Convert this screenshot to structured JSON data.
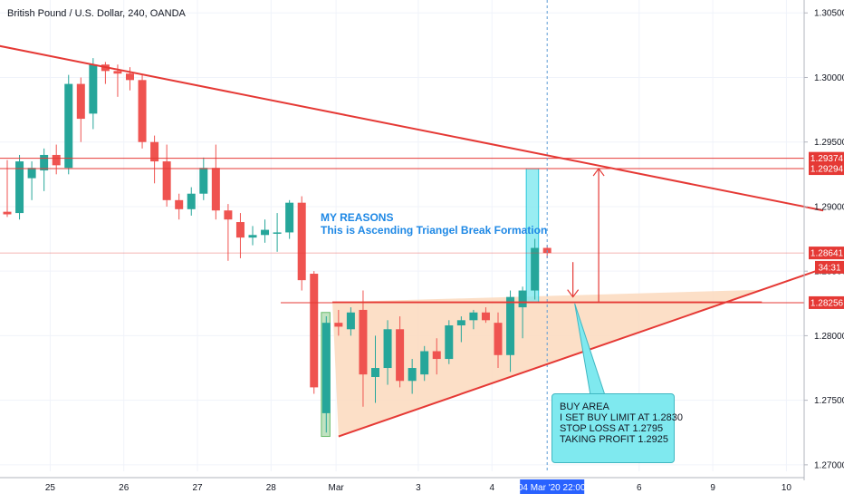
{
  "header": {
    "title": "British Pound / U.S. Dollar, 240, OANDA"
  },
  "annotations": {
    "reasons_title": "MY REASONS",
    "reasons_text": "This is Ascending Triangel Break Formation",
    "callout_lines": [
      "BUY AREA",
      "I SET BUY LIMIT AT 1.2830",
      "STOP LOSS AT 1.2795",
      "TAKING PROFIT 1.2925"
    ]
  },
  "colors": {
    "bull": "#26a69a",
    "bear": "#ef5350",
    "trend": "#e53935",
    "triangle_fill": "#fbd9bd",
    "highlight": "#7fe9ef",
    "grid": "#f0f3fa"
  },
  "chart_data": {
    "type": "candlestick",
    "title": "British Pound / U.S. Dollar, 240, OANDA",
    "ylim": [
      1.2695,
      1.306
    ],
    "y_ticks": [
      1.27,
      1.275,
      1.28,
      1.285,
      1.29,
      1.295,
      1.3,
      1.305
    ],
    "y_tick_labels": [
      "1.27000",
      "1.27500",
      "1.28000",
      "1.28500",
      "1.29000",
      "1.29500",
      "1.30000",
      "1.30500"
    ],
    "x_labels": [
      {
        "i": 3.5,
        "label": "25"
      },
      {
        "i": 9.5,
        "label": "26"
      },
      {
        "i": 15.5,
        "label": "27"
      },
      {
        "i": 21.5,
        "label": "28"
      },
      {
        "i": 26.8,
        "label": "Mar"
      },
      {
        "i": 33.5,
        "label": "3"
      },
      {
        "i": 39.5,
        "label": "4"
      },
      {
        "i": 51.5,
        "label": "6"
      },
      {
        "i": 57.5,
        "label": "9"
      },
      {
        "i": 63.5,
        "label": "10"
      }
    ],
    "cursor_label": "04 Mar '20  22:00",
    "cursor_i": 44,
    "price_labels": [
      {
        "value": 1.29374,
        "label": "1.29374"
      },
      {
        "value": 1.29294,
        "label": "1.29294"
      },
      {
        "value": 1.28641,
        "label": "1.28641"
      },
      {
        "value": 1.28256,
        "label": "1.28256"
      }
    ],
    "countdown": "34:31",
    "countdown_value": 1.2853,
    "candles": [
      {
        "i": 0,
        "o": 1.2896,
        "h": 1.2936,
        "l": 1.2892,
        "c": 1.2894
      },
      {
        "i": 1,
        "o": 1.2895,
        "h": 1.294,
        "l": 1.289,
        "c": 1.2935
      },
      {
        "i": 2,
        "o": 1.2922,
        "h": 1.2935,
        "l": 1.2905,
        "c": 1.293
      },
      {
        "i": 3,
        "o": 1.2928,
        "h": 1.2945,
        "l": 1.2912,
        "c": 1.294
      },
      {
        "i": 4,
        "o": 1.294,
        "h": 1.2948,
        "l": 1.2925,
        "c": 1.2932
      },
      {
        "i": 5,
        "o": 1.293,
        "h": 1.3002,
        "l": 1.2925,
        "c": 1.2995
      },
      {
        "i": 6,
        "o": 1.2995,
        "h": 1.3,
        "l": 1.295,
        "c": 1.2968
      },
      {
        "i": 7,
        "o": 1.2972,
        "h": 1.3015,
        "l": 1.296,
        "c": 1.301
      },
      {
        "i": 8,
        "o": 1.301,
        "h": 1.3012,
        "l": 1.2995,
        "c": 1.3005
      },
      {
        "i": 9,
        "o": 1.3005,
        "h": 1.301,
        "l": 1.2985,
        "c": 1.3003
      },
      {
        "i": 10,
        "o": 1.3003,
        "h": 1.3008,
        "l": 1.299,
        "c": 1.2998
      },
      {
        "i": 11,
        "o": 1.2998,
        "h": 1.3002,
        "l": 1.2945,
        "c": 1.295
      },
      {
        "i": 12,
        "o": 1.295,
        "h": 1.2955,
        "l": 1.2918,
        "c": 1.2935
      },
      {
        "i": 13,
        "o": 1.2935,
        "h": 1.2948,
        "l": 1.29,
        "c": 1.2905
      },
      {
        "i": 14,
        "o": 1.2905,
        "h": 1.291,
        "l": 1.289,
        "c": 1.2898
      },
      {
        "i": 15,
        "o": 1.2898,
        "h": 1.2915,
        "l": 1.2893,
        "c": 1.291
      },
      {
        "i": 16,
        "o": 1.291,
        "h": 1.2938,
        "l": 1.2905,
        "c": 1.293
      },
      {
        "i": 17,
        "o": 1.293,
        "h": 1.2948,
        "l": 1.289,
        "c": 1.2897
      },
      {
        "i": 18,
        "o": 1.2897,
        "h": 1.2902,
        "l": 1.2858,
        "c": 1.289
      },
      {
        "i": 19,
        "o": 1.2888,
        "h": 1.2895,
        "l": 1.286,
        "c": 1.2876
      },
      {
        "i": 20,
        "o": 1.2876,
        "h": 1.2885,
        "l": 1.287,
        "c": 1.2878
      },
      {
        "i": 21,
        "o": 1.2878,
        "h": 1.289,
        "l": 1.2872,
        "c": 1.2882
      },
      {
        "i": 22,
        "o": 1.288,
        "h": 1.2895,
        "l": 1.2865,
        "c": 1.288
      },
      {
        "i": 23,
        "o": 1.288,
        "h": 1.2905,
        "l": 1.2875,
        "c": 1.2903
      },
      {
        "i": 24,
        "o": 1.2903,
        "h": 1.2908,
        "l": 1.2835,
        "c": 1.2843
      },
      {
        "i": 25,
        "o": 1.2848,
        "h": 1.285,
        "l": 1.2755,
        "c": 1.276
      },
      {
        "i": 26,
        "o": 1.274,
        "h": 1.2815,
        "l": 1.2725,
        "c": 1.281
      },
      {
        "i": 27,
        "o": 1.281,
        "h": 1.282,
        "l": 1.28,
        "c": 1.2807
      },
      {
        "i": 28,
        "o": 1.2805,
        "h": 1.2822,
        "l": 1.28,
        "c": 1.2818
      },
      {
        "i": 29,
        "o": 1.282,
        "h": 1.2835,
        "l": 1.2745,
        "c": 1.277
      },
      {
        "i": 30,
        "o": 1.2768,
        "h": 1.28,
        "l": 1.2748,
        "c": 1.2775
      },
      {
        "i": 31,
        "o": 1.2775,
        "h": 1.2812,
        "l": 1.2762,
        "c": 1.2805
      },
      {
        "i": 32,
        "o": 1.2805,
        "h": 1.2815,
        "l": 1.276,
        "c": 1.2765
      },
      {
        "i": 33,
        "o": 1.2765,
        "h": 1.2782,
        "l": 1.2755,
        "c": 1.2775
      },
      {
        "i": 34,
        "o": 1.277,
        "h": 1.2792,
        "l": 1.2765,
        "c": 1.2788
      },
      {
        "i": 35,
        "o": 1.2788,
        "h": 1.2798,
        "l": 1.277,
        "c": 1.2782
      },
      {
        "i": 36,
        "o": 1.2782,
        "h": 1.2812,
        "l": 1.2778,
        "c": 1.2808
      },
      {
        "i": 37,
        "o": 1.2808,
        "h": 1.2815,
        "l": 1.2795,
        "c": 1.2812
      },
      {
        "i": 38,
        "o": 1.2812,
        "h": 1.282,
        "l": 1.2805,
        "c": 1.2818
      },
      {
        "i": 39,
        "o": 1.2818,
        "h": 1.2822,
        "l": 1.281,
        "c": 1.2812
      },
      {
        "i": 40,
        "o": 1.281,
        "h": 1.2818,
        "l": 1.2775,
        "c": 1.2785
      },
      {
        "i": 41,
        "o": 1.2785,
        "h": 1.2835,
        "l": 1.2772,
        "c": 1.283
      },
      {
        "i": 42,
        "o": 1.2822,
        "h": 1.2838,
        "l": 1.2798,
        "c": 1.2835
      },
      {
        "i": 43,
        "o": 1.2835,
        "h": 1.2875,
        "l": 1.2828,
        "c": 1.2868
      },
      {
        "i": 44,
        "o": 1.2868,
        "h": 1.287,
        "l": 1.286,
        "c": 1.2864
      }
    ],
    "levels": [
      {
        "value": 1.29374,
        "style": "line"
      },
      {
        "value": 1.29294,
        "style": "line"
      },
      {
        "value": 1.28641,
        "style": "faint"
      },
      {
        "value": 1.28256,
        "style": "line"
      }
    ],
    "trendlines": [
      {
        "name": "",
        "from": {
          "i": -2,
          "v": 1.3027
        },
        "to": {
          "i": 66.5,
          "v": 1.2897
        }
      },
      {
        "name": "",
        "from": {
          "i": 27,
          "v": 1.2722
        },
        "to": {
          "i": 66.5,
          "v": 1.2852
        }
      }
    ],
    "triangle": {
      "top": {
        "i0": 26.5,
        "i1": 61.5,
        "v": 1.2826
      },
      "apex_i": 61.5,
      "bottom_i": 27,
      "bottom_v": 1.2722
    },
    "highlight_box": {
      "i0": 42.3,
      "i1": 43.3,
      "v0": 1.28256,
      "v1": 1.29294
    },
    "green_box": {
      "i0": 25.6,
      "i1": 26.3,
      "v0": 1.2722,
      "v1": 1.2818
    },
    "target_arrow": {
      "i": 48.2,
      "v0": 1.28256,
      "v1": 1.29294
    },
    "entry_arrow": {
      "i": 46.1,
      "v0": 1.2857,
      "v1": 1.283
    }
  }
}
